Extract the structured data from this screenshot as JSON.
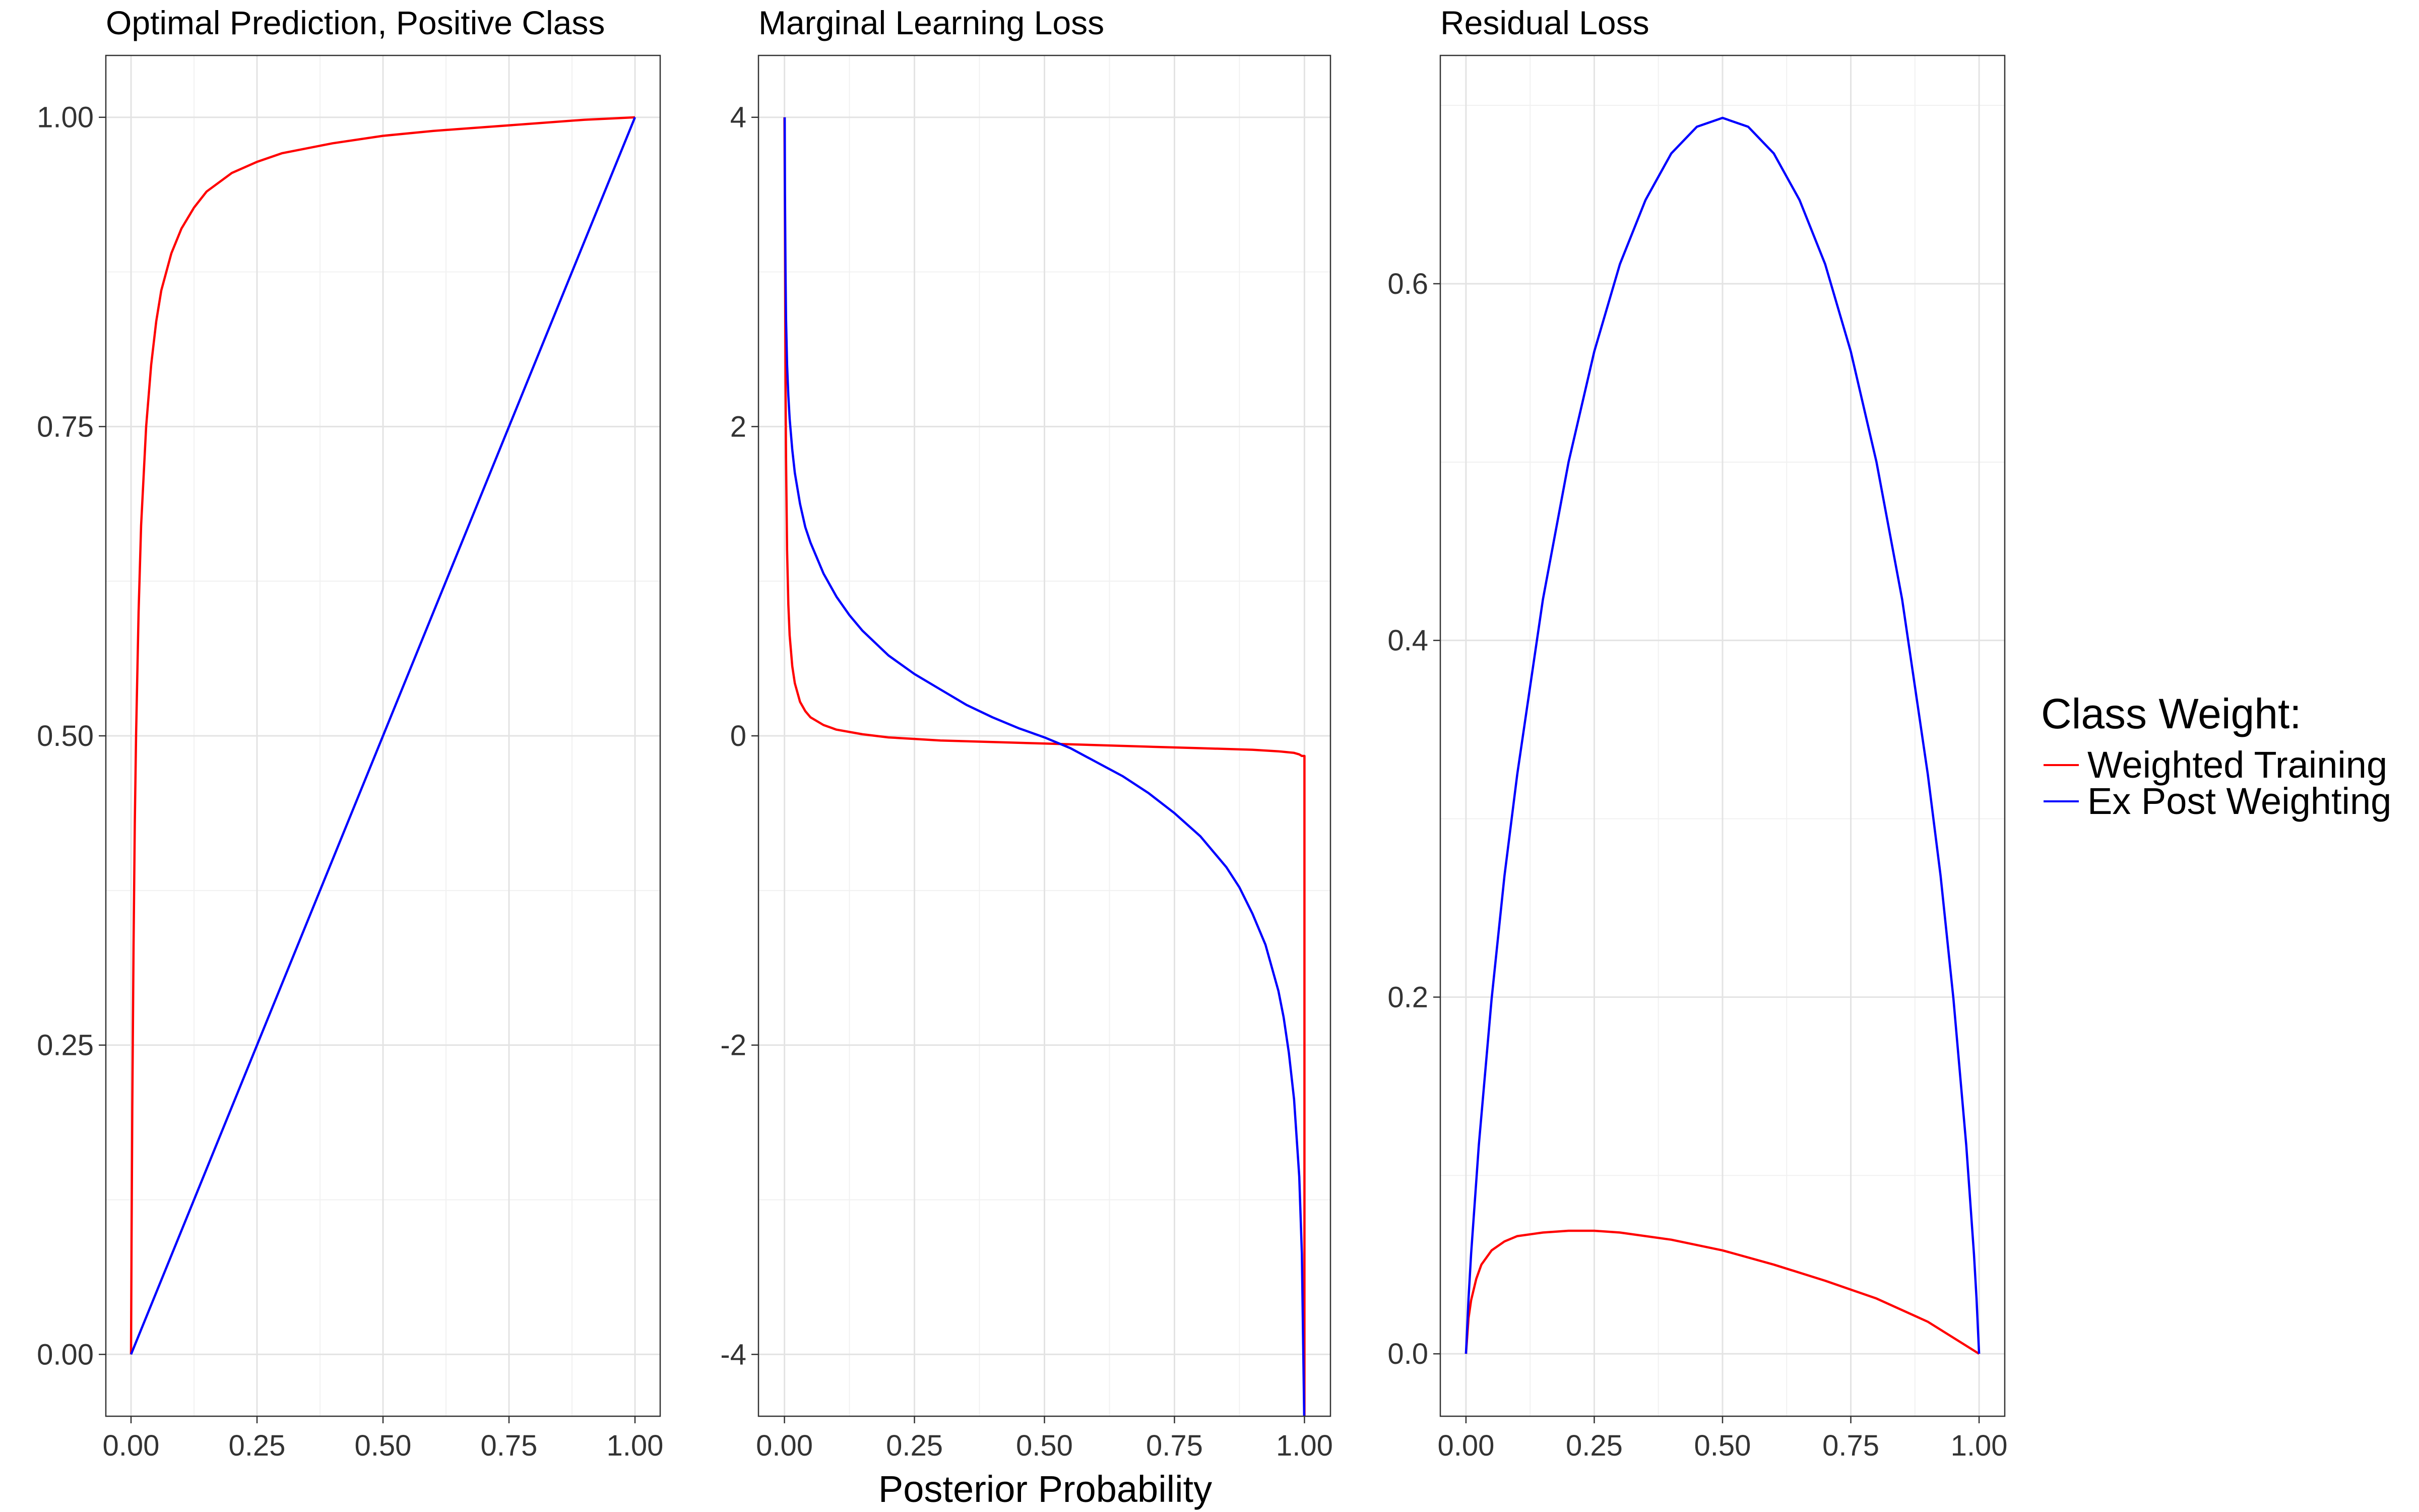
{
  "chart_data": [
    {
      "type": "line",
      "title": "Optimal Prediction, Positive Class",
      "xlabel": "",
      "ylabel": "",
      "xlim": [
        -0.05,
        1.05
      ],
      "ylim": [
        -0.05,
        1.05
      ],
      "x_ticks": [
        0,
        0.25,
        0.5,
        0.75,
        1
      ],
      "x_tick_labels": [
        "0.00",
        "0.25",
        "0.50",
        "0.75",
        "1.00"
      ],
      "y_ticks": [
        0,
        0.25,
        0.5,
        0.75,
        1
      ],
      "y_tick_labels": [
        "0.00",
        "0.25",
        "0.50",
        "0.75",
        "1.00"
      ],
      "grid": true,
      "series": [
        {
          "name": "Weighted Training",
          "color": "#FF0000",
          "x": [
            0,
            0.001,
            0.0025,
            0.005,
            0.0075,
            0.01,
            0.015,
            0.02,
            0.03,
            0.04,
            0.05,
            0.06,
            0.08,
            0.1,
            0.125,
            0.15,
            0.2,
            0.25,
            0.3,
            0.4,
            0.5,
            0.6,
            0.7,
            0.8,
            0.9,
            0.95,
            1
          ],
          "y": [
            0,
            0.09,
            0.2,
            0.33,
            0.43,
            0.5,
            0.6,
            0.67,
            0.75,
            0.8,
            0.835,
            0.86,
            0.89,
            0.91,
            0.927,
            0.94,
            0.955,
            0.964,
            0.971,
            0.979,
            0.985,
            0.989,
            0.992,
            0.995,
            0.998,
            0.999,
            1
          ]
        },
        {
          "name": "Ex Post Weighting",
          "color": "#0000FF",
          "x": [
            0,
            0.25,
            0.5,
            0.75,
            1
          ],
          "y": [
            0,
            0.25,
            0.5,
            0.75,
            1
          ]
        }
      ]
    },
    {
      "type": "line",
      "title": "Marginal Learning Loss",
      "xlabel": "Posterior Probability",
      "ylabel": "",
      "xlim": [
        -0.05,
        1.05
      ],
      "ylim": [
        -4.4,
        4.4
      ],
      "x_ticks": [
        0,
        0.25,
        0.5,
        0.75,
        1
      ],
      "x_tick_labels": [
        "0.00",
        "0.25",
        "0.50",
        "0.75",
        "1.00"
      ],
      "y_ticks": [
        -4,
        -2,
        0,
        2,
        4
      ],
      "y_tick_labels": [
        "-4",
        "-2",
        "0",
        "2",
        "4"
      ],
      "grid": true,
      "series": [
        {
          "name": "Weighted Training",
          "color": "#FF0000",
          "x": [
            0,
            0.001,
            0.002,
            0.003,
            0.005,
            0.0075,
            0.01,
            0.015,
            0.02,
            0.03,
            0.04,
            0.05,
            0.075,
            0.1,
            0.15,
            0.2,
            0.25,
            0.3,
            0.4,
            0.5,
            0.6,
            0.7,
            0.8,
            0.9,
            0.95,
            0.98,
            0.99,
            0.995,
            1,
            1
          ],
          "y": [
            4,
            3.3,
            2.3,
            1.8,
            1.2,
            0.85,
            0.65,
            0.45,
            0.34,
            0.22,
            0.16,
            0.12,
            0.07,
            0.04,
            0.01,
            -0.01,
            -0.02,
            -0.03,
            -0.04,
            -0.05,
            -0.06,
            -0.07,
            -0.08,
            -0.09,
            -0.1,
            -0.11,
            -0.12,
            -0.13,
            -0.13,
            -4.4
          ]
        },
        {
          "name": "Ex Post Weighting",
          "color": "#0000FF",
          "x": [
            0.0005,
            0.001,
            0.002,
            0.003,
            0.005,
            0.0075,
            0.01,
            0.015,
            0.02,
            0.03,
            0.04,
            0.05,
            0.075,
            0.1,
            0.125,
            0.15,
            0.2,
            0.25,
            0.3,
            0.35,
            0.4,
            0.45,
            0.5,
            0.55,
            0.6,
            0.65,
            0.7,
            0.75,
            0.8,
            0.85,
            0.875,
            0.9,
            0.925,
            0.95,
            0.96,
            0.97,
            0.98,
            0.99,
            0.995,
            0.9995
          ],
          "y": [
            4,
            3.5,
            3.0,
            2.7,
            2.4,
            2.2,
            2.05,
            1.85,
            1.7,
            1.5,
            1.35,
            1.25,
            1.05,
            0.9,
            0.78,
            0.68,
            0.52,
            0.4,
            0.3,
            0.2,
            0.12,
            0.05,
            -0.01,
            -0.08,
            -0.17,
            -0.26,
            -0.37,
            -0.5,
            -0.65,
            -0.85,
            -0.98,
            -1.15,
            -1.35,
            -1.65,
            -1.82,
            -2.05,
            -2.35,
            -2.85,
            -3.35,
            -4.4
          ]
        }
      ]
    },
    {
      "type": "line",
      "title": "Residual Loss",
      "xlabel": "",
      "ylabel": "",
      "xlim": [
        -0.05,
        1.05
      ],
      "ylim": [
        -0.035,
        0.728
      ],
      "x_ticks": [
        0,
        0.25,
        0.5,
        0.75,
        1
      ],
      "x_tick_labels": [
        "0.00",
        "0.25",
        "0.50",
        "0.75",
        "1.00"
      ],
      "y_ticks": [
        0,
        0.2,
        0.4,
        0.6
      ],
      "y_tick_labels": [
        "0.0",
        "0.2",
        "0.4",
        "0.6"
      ],
      "grid": true,
      "series": [
        {
          "name": "Weighted Training",
          "color": "#FF0000",
          "x": [
            0,
            0.005,
            0.01,
            0.02,
            0.03,
            0.05,
            0.075,
            0.1,
            0.15,
            0.2,
            0.25,
            0.3,
            0.4,
            0.5,
            0.6,
            0.7,
            0.8,
            0.9,
            1
          ],
          "y": [
            0,
            0.02,
            0.03,
            0.042,
            0.05,
            0.058,
            0.063,
            0.066,
            0.068,
            0.069,
            0.069,
            0.068,
            0.064,
            0.058,
            0.05,
            0.041,
            0.031,
            0.018,
            0
          ]
        },
        {
          "name": "Ex Post Weighting",
          "color": "#0000FF",
          "x": [
            0,
            0.005,
            0.01,
            0.025,
            0.05,
            0.075,
            0.1,
            0.15,
            0.2,
            0.25,
            0.3,
            0.35,
            0.4,
            0.45,
            0.5,
            0.55,
            0.6,
            0.65,
            0.7,
            0.75,
            0.8,
            0.85,
            0.9,
            0.925,
            0.95,
            0.975,
            0.99,
            0.995,
            1
          ],
          "y": [
            0,
            0.031,
            0.056,
            0.117,
            0.199,
            0.268,
            0.325,
            0.423,
            0.5,
            0.562,
            0.611,
            0.647,
            0.673,
            0.688,
            0.693,
            0.688,
            0.673,
            0.647,
            0.611,
            0.562,
            0.5,
            0.423,
            0.325,
            0.268,
            0.199,
            0.117,
            0.056,
            0.031,
            0
          ]
        }
      ]
    }
  ],
  "legend": {
    "title": "Class Weight:",
    "placement": "right",
    "items": [
      {
        "label": "Weighted Training",
        "color": "#FF0000"
      },
      {
        "label": "Ex Post Weighting",
        "color": "#0000FF"
      }
    ]
  }
}
